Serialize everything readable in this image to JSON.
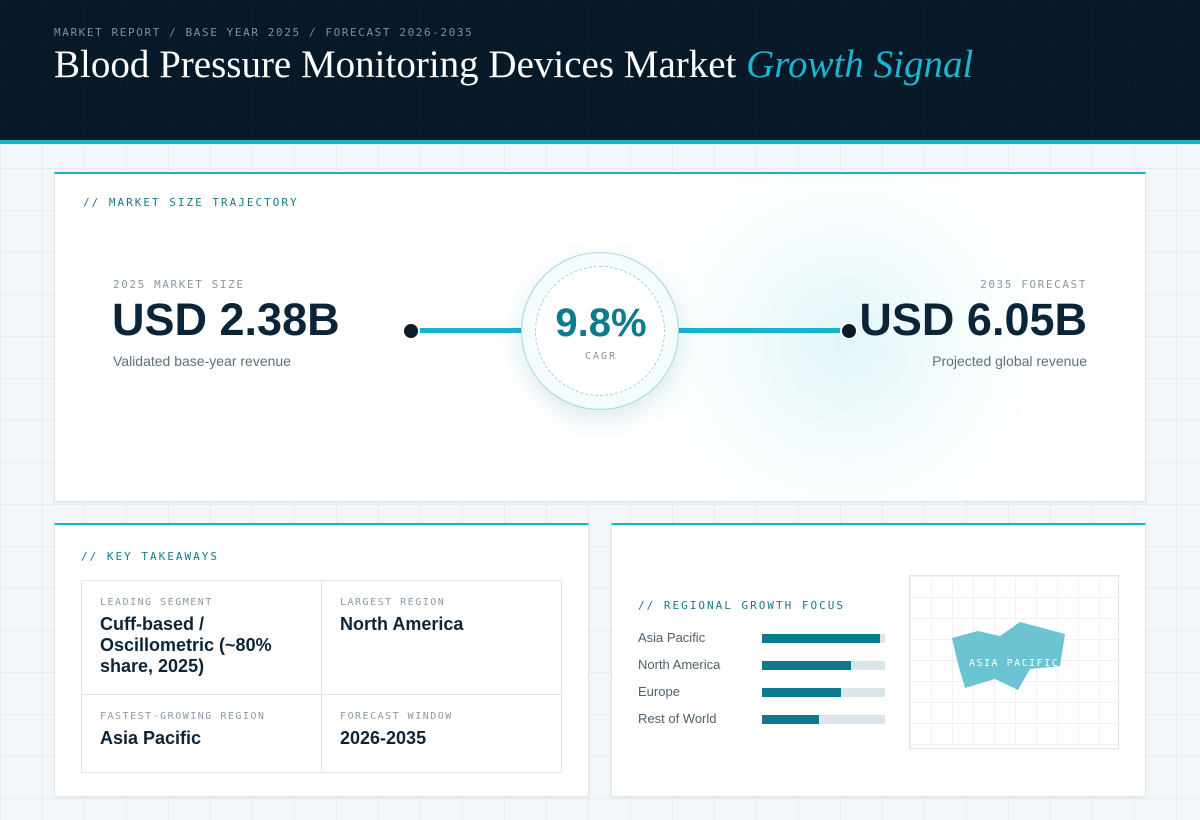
{
  "header": {
    "kicker": "MARKET REPORT / BASE YEAR 2025 / FORECAST 2026-2035",
    "title_main": "Blood Pressure Monitoring Devices Market",
    "title_accent": "Growth Signal"
  },
  "trajectory": {
    "label": "// MARKET SIZE TRAJECTORY",
    "start": {
      "label": "2025 MARKET SIZE",
      "value": "USD 2.38B",
      "caption": "Validated base-year revenue"
    },
    "end": {
      "label": "2035 FORECAST",
      "value": "USD 6.05B",
      "caption": "Projected global revenue"
    },
    "cagr": {
      "value": "9.8%",
      "label": "CAGR"
    }
  },
  "takeaways": {
    "label": "// KEY TAKEAWAYS",
    "items": [
      {
        "label": "LEADING SEGMENT",
        "value": "Cuff-based / Oscillometric (~80% share, 2025)"
      },
      {
        "label": "LARGEST REGION",
        "value": "North America"
      },
      {
        "label": "FASTEST-GROWING REGION",
        "value": "Asia Pacific"
      },
      {
        "label": "FORECAST WINDOW",
        "value": "2026-2035"
      }
    ]
  },
  "regional": {
    "label": "// REGIONAL GROWTH FOCUS",
    "map_label": "ASIA PACIFIC",
    "map_color": "#6cc3d2"
  },
  "colors": {
    "accent": "#13b5cd",
    "bar": "#0b7a8c",
    "track": "#dbe6ec",
    "header_bg": "#071826"
  },
  "chart_data": [
    {
      "type": "line",
      "x": [
        "2025",
        "2035"
      ],
      "series": [
        {
          "values": [
            2.38,
            6.05
          ]
        }
      ],
      "ylabel": "",
      "annotations": [
        "9.8% CAGR"
      ]
    },
    {
      "type": "bar",
      "orientation": "horizontal",
      "categories": [
        "Asia Pacific",
        "North America",
        "Europe",
        "Rest of World"
      ],
      "values": [
        0.96,
        0.72,
        0.64,
        0.46
      ],
      "xlim": [
        0,
        1
      ]
    }
  ]
}
